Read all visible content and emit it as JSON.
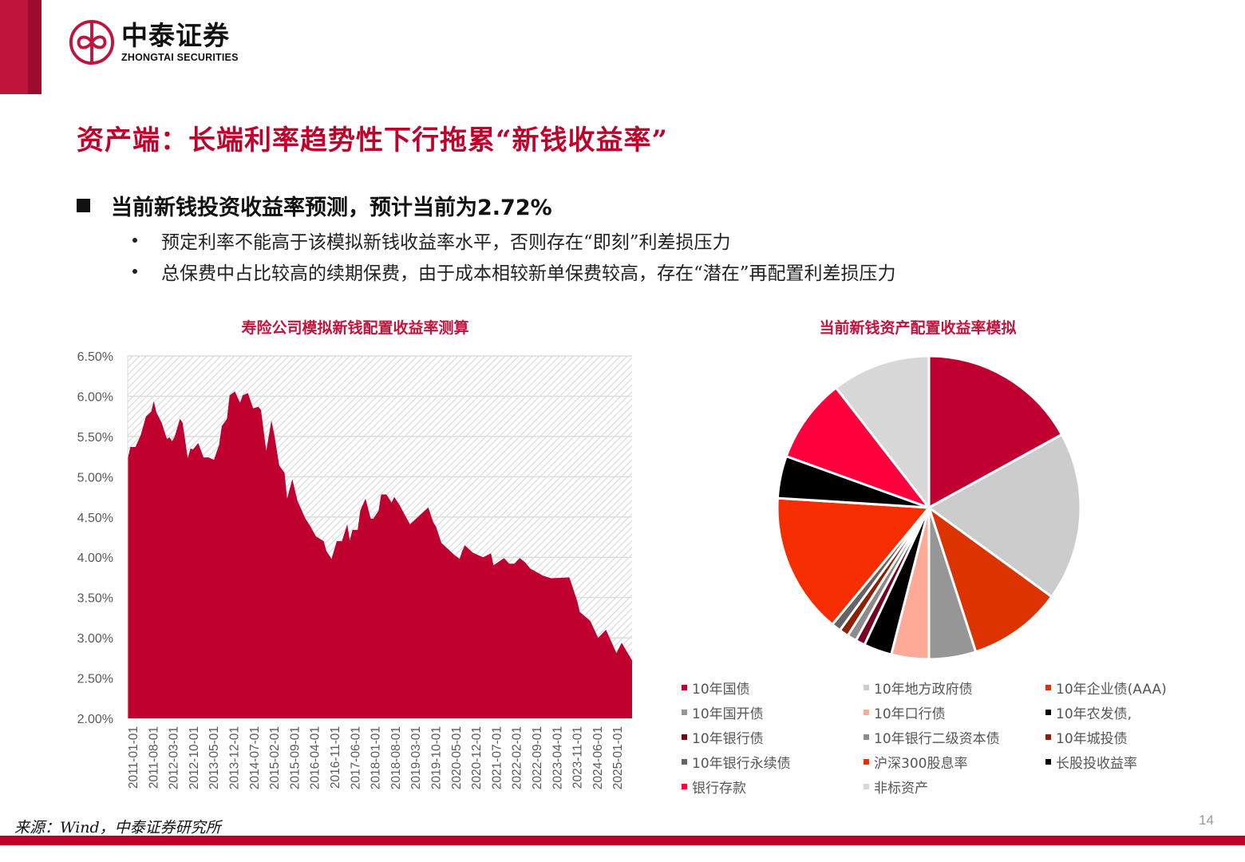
{
  "header": {
    "logo_cn": "中泰证券",
    "logo_en": "ZHONGTAI SECURITIES",
    "brand_color": "#c0143c"
  },
  "page": {
    "title": "资产端：长端利率趋势性下行拖累“新钱收益率”",
    "main_bullet": "当前新钱投资收益率预测，预计当前为2.72%",
    "sub_bullets": [
      "预定利率不能高于该模拟新钱收益率水平，否则存在“即刻”利差损压力",
      "总保费中占比较高的续期保费，由于成本相较新单保费较高，存在“潜在”再配置利差损压力"
    ],
    "source": "来源：Wind，中泰证券研究所",
    "page_number": "14"
  },
  "chart_data": [
    {
      "type": "area",
      "title": "寿险公司模拟新钱配置收益率测算",
      "xlabel": "",
      "ylabel": "",
      "ylim": [
        0.02,
        0.065
      ],
      "y_ticks": [
        "6.50%",
        "6.00%",
        "5.50%",
        "5.00%",
        "4.50%",
        "4.00%",
        "3.50%",
        "3.00%",
        "2.50%",
        "2.00%"
      ],
      "x_ticks": [
        "2011-01-01",
        "2011-08-01",
        "2012-03-01",
        "2012-10-01",
        "2013-05-01",
        "2013-12-01",
        "2014-07-01",
        "2015-02-01",
        "2015-09-01",
        "2016-04-01",
        "2016-11-01",
        "2017-06-01",
        "2018-01-01",
        "2018-08-01",
        "2019-03-01",
        "2019-10-01",
        "2020-05-01",
        "2020-12-01",
        "2021-07-01",
        "2022-02-01",
        "2022-09-01",
        "2023-04-01",
        "2023-11-01",
        "2024-06-01",
        "2025-01-01"
      ],
      "grid": true,
      "fill_color": "#c0002e",
      "x_month_index": [
        0,
        1,
        3,
        5,
        7,
        9,
        10,
        11,
        13,
        15,
        16,
        17,
        18,
        20,
        21,
        23,
        24,
        25,
        27,
        29,
        31,
        33,
        35,
        36,
        38,
        39,
        41,
        43,
        44,
        46,
        48,
        50,
        51,
        53,
        55,
        56,
        58,
        60,
        61,
        63,
        65,
        68,
        70,
        72,
        75,
        76,
        78,
        80,
        82,
        84,
        85,
        86,
        88,
        89,
        91,
        93,
        94,
        96,
        97,
        99,
        101,
        102,
        104,
        106,
        108,
        112,
        115,
        117,
        118,
        120,
        125,
        127,
        128,
        129,
        132,
        136,
        139,
        140,
        144,
        146,
        148,
        150,
        152,
        154,
        159,
        162,
        169,
        172,
        173,
        177,
        180,
        183,
        187,
        189,
        193
      ],
      "values": [
        5.22,
        5.37,
        5.37,
        5.52,
        5.75,
        5.81,
        5.94,
        5.8,
        5.67,
        5.47,
        5.49,
        5.44,
        5.5,
        5.72,
        5.67,
        5.23,
        5.35,
        5.34,
        5.42,
        5.24,
        5.24,
        5.21,
        5.4,
        5.63,
        5.72,
        6.01,
        6.06,
        5.92,
        6.01,
        6.04,
        5.85,
        5.87,
        5.83,
        5.32,
        5.7,
        5.54,
        5.14,
        5.05,
        4.73,
        4.97,
        4.7,
        4.48,
        4.38,
        4.26,
        4.2,
        4.08,
        3.98,
        4.2,
        4.2,
        4.41,
        4.21,
        4.34,
        4.34,
        4.58,
        4.73,
        4.48,
        4.48,
        4.58,
        4.78,
        4.78,
        4.68,
        4.75,
        4.65,
        4.53,
        4.41,
        4.53,
        4.62,
        4.43,
        4.38,
        4.18,
        4.03,
        3.98,
        4.08,
        4.15,
        4.06,
        4.0,
        4.05,
        3.9,
        3.99,
        3.92,
        3.92,
        3.99,
        3.94,
        3.86,
        3.77,
        3.74,
        3.75,
        3.46,
        3.32,
        3.21,
        3.0,
        3.1,
        2.81,
        2.94,
        2.72
      ]
    },
    {
      "type": "pie",
      "title": "当前新钱资产配置收益率模拟",
      "legend_position": "bottom",
      "labels": [
        "10年国债",
        "10年地方政府债",
        "10年企业债(AAA)",
        "10年国开债",
        "10年口行债",
        "10年农发债,",
        "10年银行债",
        "10年银行二级资本债",
        "10年城投债",
        "10年银行永续债",
        "沪深300股息率",
        "长股投收益率",
        "银行存款",
        "非标资产"
      ],
      "values": [
        17,
        18,
        10,
        5,
        4,
        3,
        1,
        1,
        1,
        1,
        15,
        4.5,
        9,
        10.5
      ],
      "colors": [
        "#c00030",
        "#cccccc",
        "#dd3300",
        "#969696",
        "#ffaa96",
        "#000000",
        "#780021",
        "#8c8c8c",
        "#8c2000",
        "#646464",
        "#f52d00",
        "#000000",
        "#ff003c",
        "#d7d7d7"
      ]
    }
  ]
}
